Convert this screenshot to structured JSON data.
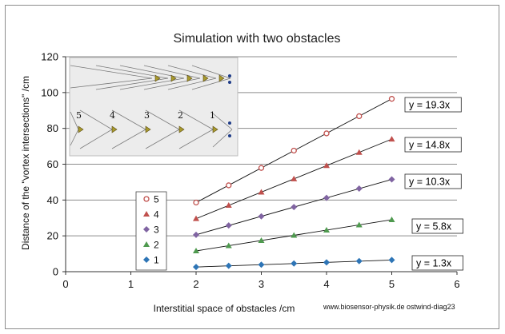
{
  "chart_data": {
    "type": "scatter",
    "title": "Simulation with two obstacles",
    "xlabel": "Interstitial space of obstacles /cm",
    "ylabel": "Distance of the \"vortex intersections\" /cm",
    "xlim": [
      0,
      6
    ],
    "ylim": [
      0,
      120
    ],
    "xticks": [
      "0",
      "1",
      "2",
      "3",
      "4",
      "5",
      "6"
    ],
    "yticks": [
      "0",
      "20",
      "40",
      "60",
      "80",
      "100",
      "120"
    ],
    "grid": "horizontal",
    "legend_position": "left",
    "credit": "www.biosensor-physik.de  ostwind-diag23",
    "x": [
      2,
      2.5,
      3,
      3.5,
      4,
      4.5,
      5
    ],
    "series": [
      {
        "name": "5",
        "marker": "circle",
        "color": "#c0504d",
        "values": [
          38.6,
          48.2,
          57.9,
          67.6,
          77.2,
          86.8,
          96.5
        ],
        "trendline": "y = 19.3x"
      },
      {
        "name": "4",
        "marker": "triangle",
        "color": "#c0504d",
        "values": [
          29.6,
          37.0,
          44.4,
          51.8,
          59.2,
          66.6,
          74.0
        ],
        "trendline": "y = 14.8x"
      },
      {
        "name": "3",
        "marker": "diamond",
        "color": "#8064a2",
        "values": [
          20.6,
          25.8,
          30.9,
          36.1,
          41.2,
          46.4,
          51.5
        ],
        "trendline": "y = 10.3x"
      },
      {
        "name": "2",
        "marker": "triangle",
        "color": "#4f9a4f",
        "values": [
          11.6,
          14.5,
          17.4,
          20.3,
          23.2,
          26.1,
          29.0
        ],
        "trendline": "y = 5.8x"
      },
      {
        "name": "1",
        "marker": "diamond",
        "color": "#2e75b6",
        "values": [
          2.6,
          3.3,
          3.9,
          4.6,
          5.2,
          5.9,
          6.5
        ],
        "trendline": "y = 1.3x"
      }
    ],
    "inset_labels": [
      "5",
      "4",
      "3",
      "2",
      "1"
    ]
  }
}
